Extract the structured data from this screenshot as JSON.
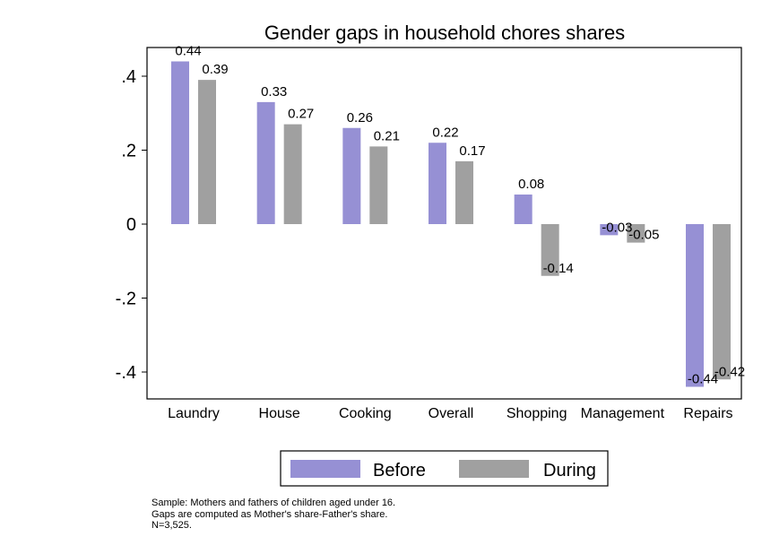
{
  "chart_data": {
    "type": "bar",
    "title": "Gender gaps in household chores shares",
    "xlabel": "",
    "ylabel": "",
    "categories": [
      "Laundry",
      "House",
      "Cooking",
      "Overall",
      "Shopping",
      "Management",
      "Repairs"
    ],
    "series": [
      {
        "name": "Before",
        "color": "#9690d4",
        "values": [
          0.44,
          0.33,
          0.26,
          0.22,
          0.08,
          -0.03,
          -0.44
        ],
        "labels": [
          "0.44",
          "0.33",
          "0.26",
          "0.22",
          "0.08",
          "-0.03",
          "-0.44"
        ]
      },
      {
        "name": "During",
        "color": "#a0a0a0",
        "values": [
          0.39,
          0.27,
          0.21,
          0.17,
          -0.14,
          -0.05,
          -0.42
        ],
        "labels": [
          "0.39",
          "0.27",
          "0.21",
          "0.17",
          "-0.14",
          "-0.05",
          "-0.42"
        ]
      }
    ],
    "ylim": [
      -0.48,
      0.48
    ],
    "yticks": [
      0.4,
      0.2,
      0,
      -0.2,
      -0.4
    ],
    "ytick_labels": [
      ".4",
      ".2",
      "0",
      "-.2",
      "-.4"
    ],
    "grid": false,
    "legend_position": "bottom"
  },
  "notes": [
    "Sample: Mothers and fathers of children aged under 16.",
    "Gaps are computed as Mother's share-Father's share.",
    "N=3,525."
  ]
}
